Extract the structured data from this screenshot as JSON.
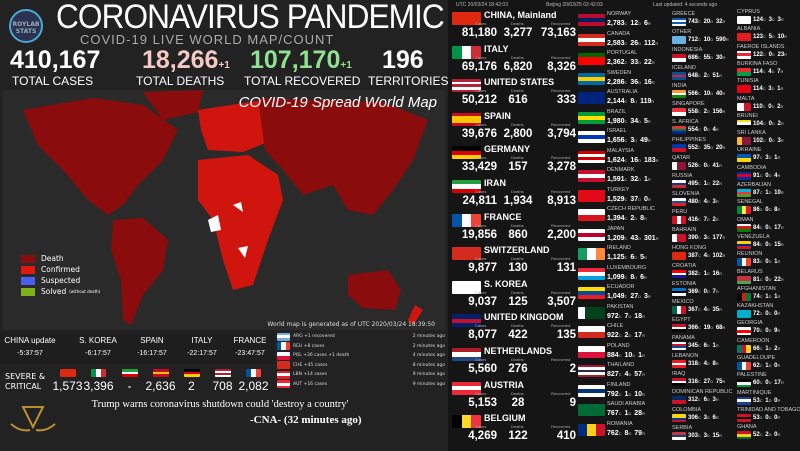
{
  "header": {
    "logo": "ROYLAB STATS",
    "title": "CORONAVIRUS PANDEMIC",
    "subtitle": "COVID-19 LIVE WORLD MAP/COUNT"
  },
  "stats": [
    {
      "value": "410,167",
      "delta": "",
      "label": "TOTAL CASES",
      "color": "#ffffff"
    },
    {
      "value": "18,266",
      "delta": "+1",
      "label": "TOTAL DEATHS",
      "color": "#f4c9c4"
    },
    {
      "value": "107,170",
      "delta": "+1",
      "label": "TOTAL RECOVERED",
      "color": "#8fe08f"
    },
    {
      "value": "196",
      "delta": "",
      "label": "TERRITORIES",
      "color": "#ffffff"
    }
  ],
  "map": {
    "title": "COVID-19 Spread World Map",
    "note": "World map is generated as of UTC 2020/03/24 18:39:50",
    "legend": [
      {
        "label": "Death",
        "color": "#8a0c0c"
      },
      {
        "label": "Confirmed",
        "color": "#e0190f"
      },
      {
        "label": "Suspected",
        "color": "#4a5ef0"
      },
      {
        "label": "Solved",
        "note": "(without death)",
        "color": "#7fb21a"
      }
    ]
  },
  "updates": [
    {
      "name": "CHINA update",
      "time": "-5:37:57"
    },
    {
      "name": "S. KOREA",
      "time": "-6:17:57"
    },
    {
      "name": "SPAIN",
      "time": "-16:17:57"
    },
    {
      "name": "ITALY",
      "time": "-22:17:57"
    },
    {
      "name": "FRANCE",
      "time": "-23:47:57"
    }
  ],
  "severe": {
    "label": "SEVERE & CRITICAL",
    "items": [
      {
        "value": "1,573",
        "flag": {
          "d": "h",
          "c": [
            "#de2910"
          ]
        }
      },
      {
        "value": "3,396",
        "flag": {
          "d": "v",
          "c": [
            "#009246",
            "#fff",
            "#ce2b37"
          ]
        }
      },
      {
        "value": "-",
        "flag": {
          "d": "h",
          "c": [
            "#239f40",
            "#fff",
            "#da0000"
          ]
        }
      },
      {
        "value": "2,636",
        "flag": {
          "d": "h",
          "c": [
            "#c60b1e",
            "#ffc400",
            "#c60b1e"
          ]
        }
      },
      {
        "value": "2",
        "flag": {
          "d": "h",
          "c": [
            "#000",
            "#dd0000",
            "#ffce00"
          ]
        }
      },
      {
        "value": "708",
        "flag": {
          "d": "h",
          "c": [
            "#b22234",
            "#fff",
            "#b22234",
            "#fff"
          ]
        }
      },
      {
        "value": "2,082",
        "flag": {
          "d": "v",
          "c": [
            "#0055a4",
            "#fff",
            "#ef4135"
          ]
        }
      }
    ]
  },
  "ticker": [
    {
      "text": "ARG +1 recovered",
      "time": "2 minutes ago",
      "flag": {
        "d": "h",
        "c": [
          "#74acdf",
          "#fff",
          "#74acdf"
        ]
      }
    },
    {
      "text": "REU +8 cases",
      "time": "2 minutes ago",
      "flag": {
        "d": "v",
        "c": [
          "#0055a4",
          "#fff",
          "#ef4135"
        ]
      }
    },
    {
      "text": "POL +36 cases +1 death",
      "time": "4 minutes ago",
      "flag": {
        "d": "h",
        "c": [
          "#fff",
          "#dc143c"
        ]
      }
    },
    {
      "text": "CHE +45 cases",
      "time": "8 minutes ago",
      "flag": {
        "d": "h",
        "c": [
          "#d52b1e"
        ]
      }
    },
    {
      "text": "LBN +14 cases",
      "time": "9 minutes ago",
      "flag": {
        "d": "h",
        "c": [
          "#ed1c24",
          "#fff",
          "#ed1c24"
        ]
      }
    },
    {
      "text": "AUT +16 cases",
      "time": "9 minutes ago",
      "flag": {
        "d": "h",
        "c": [
          "#ed2939",
          "#fff",
          "#ed2939"
        ]
      }
    }
  ],
  "news": {
    "headline": "Trump warns coronavirus shutdown could 'destroy a country'",
    "source": "-CNA- (32 minutes ago)"
  },
  "right": {
    "utc": "UTC 20/03/24 18:42:03",
    "beijing": "Beijing 20/03/25 02:42:03",
    "updated": "Last updated: 4 seconds ago",
    "col_labels": {
      "cases": "Cases",
      "deaths": "Deaths",
      "recovered": "Recovered",
      "c": "C",
      "d": "D",
      "r": "R"
    },
    "top": [
      {
        "name": "CHINA, Mainland",
        "cases": "81,180",
        "deaths": "3,277",
        "recovered": "73,163",
        "flag": {
          "d": "h",
          "c": [
            "#de2910"
          ]
        }
      },
      {
        "name": "ITALY",
        "cases": "69,176",
        "deaths": "6,820",
        "recovered": "8,326",
        "flag": {
          "d": "v",
          "c": [
            "#009246",
            "#fff",
            "#ce2b37"
          ]
        }
      },
      {
        "name": "UNITED STATES",
        "cases": "50,212",
        "deaths": "616",
        "recovered": "333",
        "flag": {
          "d": "h",
          "c": [
            "#b22234",
            "#fff",
            "#b22234",
            "#fff",
            "#b22234"
          ]
        }
      },
      {
        "name": "SPAIN",
        "cases": "39,676",
        "deaths": "2,800",
        "recovered": "3,794",
        "flag": {
          "d": "h",
          "c": [
            "#c60b1e",
            "#ffc400",
            "#ffc400",
            "#c60b1e"
          ]
        }
      },
      {
        "name": "GERMANY",
        "cases": "33,429",
        "deaths": "157",
        "recovered": "3,278",
        "flag": {
          "d": "h",
          "c": [
            "#000",
            "#dd0000",
            "#ffce00"
          ]
        }
      },
      {
        "name": "IRAN",
        "cases": "24,811",
        "deaths": "1,934",
        "recovered": "8,913",
        "flag": {
          "d": "h",
          "c": [
            "#239f40",
            "#fff",
            "#da0000"
          ]
        }
      },
      {
        "name": "FRANCE",
        "cases": "19,856",
        "deaths": "860",
        "recovered": "2,200",
        "flag": {
          "d": "v",
          "c": [
            "#0055a4",
            "#fff",
            "#ef4135"
          ]
        }
      },
      {
        "name": "SWITZERLAND",
        "cases": "9,877",
        "deaths": "130",
        "recovered": "131",
        "flag": {
          "d": "h",
          "c": [
            "#d52b1e"
          ]
        }
      },
      {
        "name": "S. KOREA",
        "cases": "9,037",
        "deaths": "125",
        "recovered": "3,507",
        "flag": {
          "d": "h",
          "c": [
            "#ffffff"
          ]
        }
      },
      {
        "name": "UNITED KINGDOM",
        "cases": "8,077",
        "deaths": "422",
        "recovered": "135",
        "flag": {
          "d": "h",
          "c": [
            "#012169",
            "#c8102e",
            "#012169"
          ]
        }
      },
      {
        "name": "NETHERLANDS",
        "cases": "5,560",
        "deaths": "276",
        "recovered": "2",
        "flag": {
          "d": "h",
          "c": [
            "#ae1c28",
            "#fff",
            "#21468b"
          ]
        }
      },
      {
        "name": "AUSTRIA",
        "cases": "5,153",
        "deaths": "28",
        "recovered": "9",
        "flag": {
          "d": "h",
          "c": [
            "#ed2939",
            "#fff",
            "#ed2939"
          ]
        }
      },
      {
        "name": "BELGIUM",
        "cases": "4,269",
        "deaths": "122",
        "recovered": "410",
        "flag": {
          "d": "v",
          "c": [
            "#000",
            "#fdda24",
            "#ef3340"
          ]
        }
      }
    ],
    "col2": [
      [
        "NORWAY",
        "2,783",
        "12",
        "6",
        [
          "#ba0c2f",
          "#00205b",
          "#ba0c2f"
        ]
      ],
      [
        "CANADA",
        "2,583",
        "26",
        "112",
        [
          "#d52b1e",
          "#fff",
          "#d52b1e"
        ]
      ],
      [
        "PORTUGAL",
        "2,362",
        "33",
        "22",
        [
          "#006600",
          "#ff0000",
          "#ff0000"
        ]
      ],
      [
        "SWEDEN",
        "2,286",
        "36",
        "16",
        [
          "#006aa7",
          "#fecc00",
          "#006aa7"
        ]
      ],
      [
        "AUSTRALIA",
        "2,144",
        "8",
        "119",
        [
          "#00247d"
        ]
      ],
      [
        "BRAZIL",
        "1,980",
        "34",
        "5",
        [
          "#009c3b",
          "#ffdf00",
          "#009c3b"
        ]
      ],
      [
        "ISRAEL",
        "1,656",
        "3",
        "49",
        [
          "#fff",
          "#0038b8",
          "#fff"
        ]
      ],
      [
        "MALAYSIA",
        "1,624",
        "16",
        "183",
        [
          "#cc0001",
          "#fff",
          "#cc0001",
          "#fff"
        ]
      ],
      [
        "DENMARK",
        "1,591",
        "32",
        "1",
        [
          "#c8102e",
          "#fff",
          "#c8102e"
        ]
      ],
      [
        "TURKEY",
        "1,529",
        "37",
        "0",
        [
          "#e30a17"
        ]
      ],
      [
        "CZECH REPUBLIC",
        "1,394",
        "2",
        "8",
        [
          "#fff",
          "#d7141a"
        ]
      ],
      [
        "JAPAN",
        "1,209",
        "43",
        "301",
        [
          "#fff",
          "#bc002d",
          "#fff"
        ]
      ],
      [
        "IRELAND",
        "1,125",
        "6",
        "5",
        [
          "#169b62",
          "#fff",
          "#ff883e"
        ],
        "v"
      ],
      [
        "LUXEMBOURG",
        "1,099",
        "8",
        "6",
        [
          "#ed2939",
          "#fff",
          "#00a1de"
        ]
      ],
      [
        "ECUADOR",
        "1,049",
        "27",
        "3",
        [
          "#ffdd00",
          "#034ea2",
          "#ed1c24"
        ]
      ],
      [
        "PAKISTAN",
        "972",
        "7",
        "18",
        [
          "#fff",
          "#01411c",
          "#01411c",
          "#01411c"
        ],
        "v"
      ],
      [
        "CHILE",
        "922",
        "2",
        "17",
        [
          "#fff",
          "#d52b1e"
        ]
      ],
      [
        "POLAND",
        "884",
        "10",
        "1",
        [
          "#fff",
          "#dc143c"
        ]
      ],
      [
        "THAILAND",
        "827",
        "4",
        "57",
        [
          "#a51931",
          "#fff",
          "#2d2a4a",
          "#fff",
          "#a51931"
        ]
      ],
      [
        "FINLAND",
        "792",
        "1",
        "10",
        [
          "#fff",
          "#003580",
          "#fff"
        ]
      ],
      [
        "SAUDI ARABIA",
        "767",
        "1",
        "28",
        [
          "#006c35"
        ]
      ],
      [
        "ROMANIA",
        "762",
        "8",
        "79",
        [
          "#002b7f",
          "#fcd116",
          "#ce1126"
        ],
        "v"
      ]
    ],
    "col3": [
      [
        "GREECE",
        "743",
        "20",
        "32",
        [
          "#0d5eaf",
          "#fff",
          "#0d5eaf",
          "#fff"
        ]
      ],
      [
        "OTHER",
        "712",
        "10",
        "590",
        [
          "#6ab0e0"
        ]
      ],
      [
        "INDONESIA",
        "686",
        "55",
        "30",
        [
          "#ce1126",
          "#fff"
        ]
      ],
      [
        "ICELAND",
        "648",
        "2",
        "51",
        [
          "#02529c",
          "#dc1e35",
          "#02529c"
        ]
      ],
      [
        "INDIA",
        "566",
        "10",
        "40",
        [
          "#ff9933",
          "#fff",
          "#138808"
        ]
      ],
      [
        "SINGAPORE",
        "558",
        "2",
        "156",
        [
          "#ef3340",
          "#fff"
        ]
      ],
      [
        "S. AFRICA",
        "554",
        "0",
        "4",
        [
          "#de3831",
          "#007a4d",
          "#002395"
        ]
      ],
      [
        "PHILIPPINES",
        "552",
        "35",
        "20",
        [
          "#0038a8",
          "#ce1126"
        ]
      ],
      [
        "QATAR",
        "526",
        "0",
        "41",
        [
          "#fff",
          "#8a1538",
          "#8a1538"
        ],
        "v"
      ],
      [
        "RUSSIA",
        "495",
        "1",
        "22",
        [
          "#fff",
          "#0039a6",
          "#d52b1e"
        ]
      ],
      [
        "SLOVENIA",
        "480",
        "4",
        "3",
        [
          "#fff",
          "#005da4",
          "#ed1c24"
        ]
      ],
      [
        "PERU",
        "416",
        "7",
        "2",
        [
          "#d91023",
          "#fff",
          "#d91023"
        ],
        "v"
      ],
      [
        "BAHRAIN",
        "390",
        "3",
        "177",
        [
          "#fff",
          "#ce1126",
          "#ce1126"
        ],
        "v"
      ],
      [
        "HONG KONG",
        "387",
        "4",
        "102",
        [
          "#de2910"
        ]
      ],
      [
        "CROATIA",
        "382",
        "1",
        "16",
        [
          "#ff0000",
          "#fff",
          "#171796"
        ]
      ],
      [
        "ESTONIA",
        "369",
        "0",
        "7",
        [
          "#0072ce",
          "#000",
          "#fff"
        ]
      ],
      [
        "MEXICO",
        "367",
        "4",
        "35",
        [
          "#006847",
          "#fff",
          "#ce1126"
        ],
        "v"
      ],
      [
        "EGYPT",
        "366",
        "19",
        "68",
        [
          "#ce1126",
          "#fff",
          "#000"
        ]
      ],
      [
        "PANAMA",
        "345",
        "6",
        "1",
        [
          "#fff",
          "#d21034",
          "#005293",
          "#fff"
        ]
      ],
      [
        "LEBANON",
        "318",
        "4",
        "8",
        [
          "#ed1c24",
          "#fff",
          "#ed1c24"
        ]
      ],
      [
        "IRAQ",
        "316",
        "27",
        "75",
        [
          "#ce1126",
          "#fff",
          "#000"
        ]
      ],
      [
        "DOMINICAN REPUBLIC",
        "312",
        "6",
        "3",
        [
          "#002d62",
          "#ce1126"
        ]
      ],
      [
        "COLOMBIA",
        "306",
        "3",
        "6",
        [
          "#fcd116",
          "#fcd116",
          "#003893",
          "#ce1126"
        ]
      ],
      [
        "SERBIA",
        "303",
        "3",
        "15",
        [
          "#c6363c",
          "#0c4076",
          "#fff"
        ]
      ]
    ],
    "col4": [
      [
        "CYPRUS",
        "124",
        "3",
        "3",
        [
          "#fff"
        ]
      ],
      [
        "ALBANIA",
        "123",
        "5",
        "10",
        [
          "#e41e20"
        ]
      ],
      [
        "FAEROE ISLANDS",
        "122",
        "0",
        "23",
        [
          "#fff",
          "#ed2939",
          "#fff"
        ]
      ],
      [
        "BURKINA FASO",
        "114",
        "4",
        "7",
        [
          "#ef2b2d",
          "#009e49"
        ]
      ],
      [
        "TUNISIA",
        "114",
        "3",
        "1",
        [
          "#e70013"
        ]
      ],
      [
        "MALTA",
        "110",
        "0",
        "2",
        [
          "#fff",
          "#cf142b"
        ],
        "v"
      ],
      [
        "BRUNEI",
        "104",
        "0",
        "2",
        [
          "#f7e017",
          "#fff",
          "#000"
        ]
      ],
      [
        "SRI LANKA",
        "102",
        "0",
        "3",
        [
          "#ffbe29",
          "#8d153a",
          "#8d153a"
        ],
        "v"
      ],
      [
        "UKRAINE",
        "97",
        "3",
        "1",
        [
          "#0057b7",
          "#ffd700"
        ]
      ],
      [
        "CAMBODIA",
        "91",
        "0",
        "4",
        [
          "#032ea1",
          "#e00025",
          "#032ea1"
        ]
      ],
      [
        "AZERBAIJAN",
        "87",
        "1",
        "10",
        [
          "#00b5e2",
          "#ef3340",
          "#509e2f"
        ]
      ],
      [
        "SENEGAL",
        "86",
        "0",
        "8",
        [
          "#00853f",
          "#fdef42",
          "#e31b23"
        ],
        "v"
      ],
      [
        "OMAN",
        "84",
        "0",
        "17",
        [
          "#fff",
          "#db161b",
          "#008000"
        ]
      ],
      [
        "VENEZUELA",
        "84",
        "0",
        "15",
        [
          "#ffcc00",
          "#00247d",
          "#cf142b"
        ]
      ],
      [
        "REUNION",
        "83",
        "0",
        "1",
        [
          "#0055a4",
          "#fff",
          "#ef4135"
        ],
        "v"
      ],
      [
        "BELARUS",
        "81",
        "0",
        "22",
        [
          "#c8313e",
          "#c8313e",
          "#4aa657"
        ]
      ],
      [
        "AFGHANISTAN",
        "74",
        "1",
        "1",
        [
          "#000",
          "#d32011",
          "#007a36"
        ],
        "v"
      ],
      [
        "KAZAKHSTAN",
        "72",
        "0",
        "0",
        [
          "#00afca"
        ]
      ],
      [
        "GEORGIA",
        "70",
        "0",
        "9",
        [
          "#fff",
          "#ff0000",
          "#fff"
        ]
      ],
      [
        "CAMEROON",
        "66",
        "1",
        "2",
        [
          "#007a5e",
          "#ce1126",
          "#fcd116"
        ],
        "v"
      ],
      [
        "GUADELOUPE",
        "62",
        "1",
        "0",
        [
          "#0055a4",
          "#fff",
          "#ef4135"
        ],
        "v"
      ],
      [
        "PALESTINE",
        "60",
        "0",
        "17",
        [
          "#000",
          "#fff",
          "#009736"
        ]
      ],
      [
        "MARTINIQUE",
        "53",
        "1",
        "0",
        [
          "#1c3f94",
          "#fff",
          "#1c3f94"
        ]
      ],
      [
        "TRINIDAD AND TOBAGO",
        "53",
        "0",
        "0",
        [
          "#ce1126",
          "#000",
          "#ce1126"
        ]
      ],
      [
        "GHANA",
        "52",
        "2",
        "0",
        [
          "#ce1126",
          "#fcd116",
          "#006b3f"
        ]
      ]
    ]
  }
}
